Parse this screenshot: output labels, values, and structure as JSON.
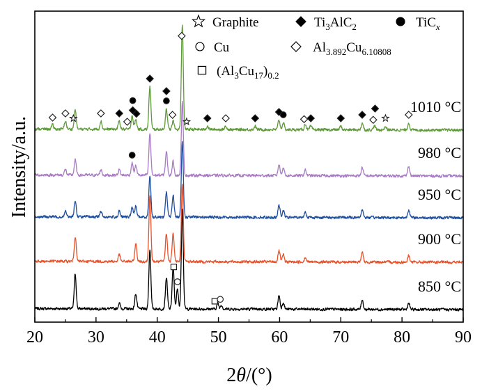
{
  "chart_data": {
    "type": "line",
    "title": "",
    "xlabel": "2θ/(°)",
    "ylabel": "Intensity/a.u.",
    "xlim": [
      20,
      90
    ],
    "xticks": [
      20,
      30,
      40,
      50,
      60,
      70,
      80,
      90
    ],
    "y_ticks_shown": false,
    "legend_position": "top-right",
    "legend": [
      {
        "symbol": "star",
        "label": "Graphite"
      },
      {
        "symbol": "diamond-filled",
        "label": "Ti₃AlC₂"
      },
      {
        "symbol": "circle-filled",
        "label": "TiCₓ"
      },
      {
        "symbol": "circle-open",
        "label": "Cu"
      },
      {
        "symbol": "diamond-open",
        "label": "Al₃.₈₉₂Cu₆.₁₀₈₀₈"
      },
      {
        "symbol": "square-open",
        "label": "(Al₃Cu₁₇)₀.₂"
      }
    ],
    "series": [
      {
        "name": "850 °C",
        "color": "#000000",
        "baseline": 0,
        "noise": 4,
        "peaks": [
          [
            26.6,
            50
          ],
          [
            33.8,
            8
          ],
          [
            36.5,
            22
          ],
          [
            38.8,
            86
          ],
          [
            41.5,
            45
          ],
          [
            42.6,
            60
          ],
          [
            43.3,
            28
          ],
          [
            44.1,
            145
          ],
          [
            49.9,
            8
          ],
          [
            50.5,
            6
          ],
          [
            59.9,
            20
          ],
          [
            60.6,
            10
          ],
          [
            73.5,
            14
          ],
          [
            81.1,
            9
          ]
        ]
      },
      {
        "name": "900 °C",
        "color": "#e8522a",
        "baseline": 68,
        "noise": 4,
        "peaks": [
          [
            26.6,
            36
          ],
          [
            33.8,
            10
          ],
          [
            36.5,
            26
          ],
          [
            38.8,
            95
          ],
          [
            41.5,
            40
          ],
          [
            42.6,
            42
          ],
          [
            44.1,
            110
          ],
          [
            59.9,
            16
          ],
          [
            60.6,
            10
          ],
          [
            64.2,
            7
          ],
          [
            73.5,
            14
          ],
          [
            81.1,
            10
          ]
        ]
      },
      {
        "name": "950 °C",
        "color": "#1f4f9f",
        "baseline": 132,
        "noise": 4,
        "peaks": [
          [
            25.0,
            8
          ],
          [
            26.6,
            24
          ],
          [
            30.8,
            8
          ],
          [
            33.8,
            8
          ],
          [
            35.9,
            14
          ],
          [
            36.5,
            16
          ],
          [
            38.8,
            60
          ],
          [
            41.5,
            36
          ],
          [
            42.6,
            32
          ],
          [
            44.1,
            110
          ],
          [
            59.9,
            18
          ],
          [
            60.6,
            10
          ],
          [
            64.2,
            8
          ],
          [
            73.5,
            12
          ],
          [
            81.1,
            12
          ]
        ]
      },
      {
        "name": "980 °C",
        "color": "#a97bc6",
        "baseline": 192,
        "noise": 4,
        "peaks": [
          [
            25.0,
            8
          ],
          [
            26.6,
            22
          ],
          [
            30.8,
            8
          ],
          [
            33.8,
            8
          ],
          [
            35.9,
            18
          ],
          [
            36.5,
            14
          ],
          [
            38.8,
            60
          ],
          [
            41.5,
            34
          ],
          [
            42.6,
            20
          ],
          [
            44.1,
            105
          ],
          [
            59.9,
            16
          ],
          [
            60.6,
            12
          ],
          [
            64.2,
            8
          ],
          [
            73.5,
            12
          ],
          [
            81.1,
            14
          ]
        ]
      },
      {
        "name": "1010 °C",
        "color": "#5f9a3a",
        "baseline": 258,
        "noise": 4,
        "peaks": [
          [
            22.9,
            6
          ],
          [
            25.0,
            12
          ],
          [
            26.6,
            28
          ],
          [
            30.8,
            12
          ],
          [
            33.8,
            12
          ],
          [
            35.9,
            20
          ],
          [
            36.5,
            14
          ],
          [
            38.8,
            62
          ],
          [
            41.5,
            30
          ],
          [
            42.6,
            12
          ],
          [
            44.1,
            150
          ],
          [
            48.2,
            5
          ],
          [
            51.2,
            5
          ],
          [
            56.0,
            5
          ],
          [
            59.9,
            14
          ],
          [
            60.6,
            10
          ],
          [
            64.2,
            8
          ],
          [
            65.1,
            5
          ],
          [
            70.0,
            5
          ],
          [
            73.5,
            10
          ],
          [
            75.5,
            6
          ],
          [
            77.3,
            5
          ],
          [
            81.1,
            10
          ]
        ]
      }
    ],
    "labels": [
      {
        "series": "1010 °C",
        "markers": [
          {
            "x": 22.9,
            "s": "diamond-open"
          },
          {
            "x": 25.0,
            "s": "diamond-open"
          },
          {
            "x": 26.3,
            "s": "star"
          },
          {
            "x": 30.8,
            "s": "diamond-open"
          },
          {
            "x": 33.8,
            "s": "diamond-filled"
          },
          {
            "x": 35.1,
            "s": "diamond-open"
          },
          {
            "x": 36.0,
            "s": "diamond-filled"
          },
          {
            "x": 36.6,
            "s": "diamond-filled"
          },
          {
            "x": 36.0,
            "s": "circle-filled"
          },
          {
            "x": 38.8,
            "s": "diamond-filled"
          },
          {
            "x": 41.5,
            "s": "circle-filled"
          },
          {
            "x": 41.5,
            "s": "diamond-filled"
          },
          {
            "x": 42.5,
            "s": "diamond-open"
          },
          {
            "x": 44.0,
            "s": "diamond-open"
          },
          {
            "x": 44.8,
            "s": "star"
          },
          {
            "x": 48.2,
            "s": "diamond-filled"
          },
          {
            "x": 51.2,
            "s": "diamond-open"
          },
          {
            "x": 56.0,
            "s": "diamond-filled"
          },
          {
            "x": 59.9,
            "s": "diamond-filled"
          },
          {
            "x": 60.6,
            "s": "circle-filled"
          },
          {
            "x": 64.0,
            "s": "diamond-open"
          },
          {
            "x": 65.1,
            "s": "diamond-filled"
          },
          {
            "x": 70.0,
            "s": "diamond-filled"
          },
          {
            "x": 73.5,
            "s": "diamond-filled"
          },
          {
            "x": 75.3,
            "s": "diamond-open"
          },
          {
            "x": 75.6,
            "s": "diamond-filled"
          },
          {
            "x": 77.3,
            "s": "star"
          },
          {
            "x": 81.1,
            "s": "diamond-open"
          }
        ]
      },
      {
        "series": "980 °C",
        "markers": [
          {
            "x": 35.9,
            "s": "circle-filled"
          }
        ]
      },
      {
        "series": "850 °C",
        "markers": [
          {
            "x": 42.7,
            "s": "square-open"
          },
          {
            "x": 43.3,
            "s": "circle-open"
          },
          {
            "x": 49.4,
            "s": "square-open"
          },
          {
            "x": 50.3,
            "s": "circle-open"
          }
        ]
      }
    ]
  }
}
